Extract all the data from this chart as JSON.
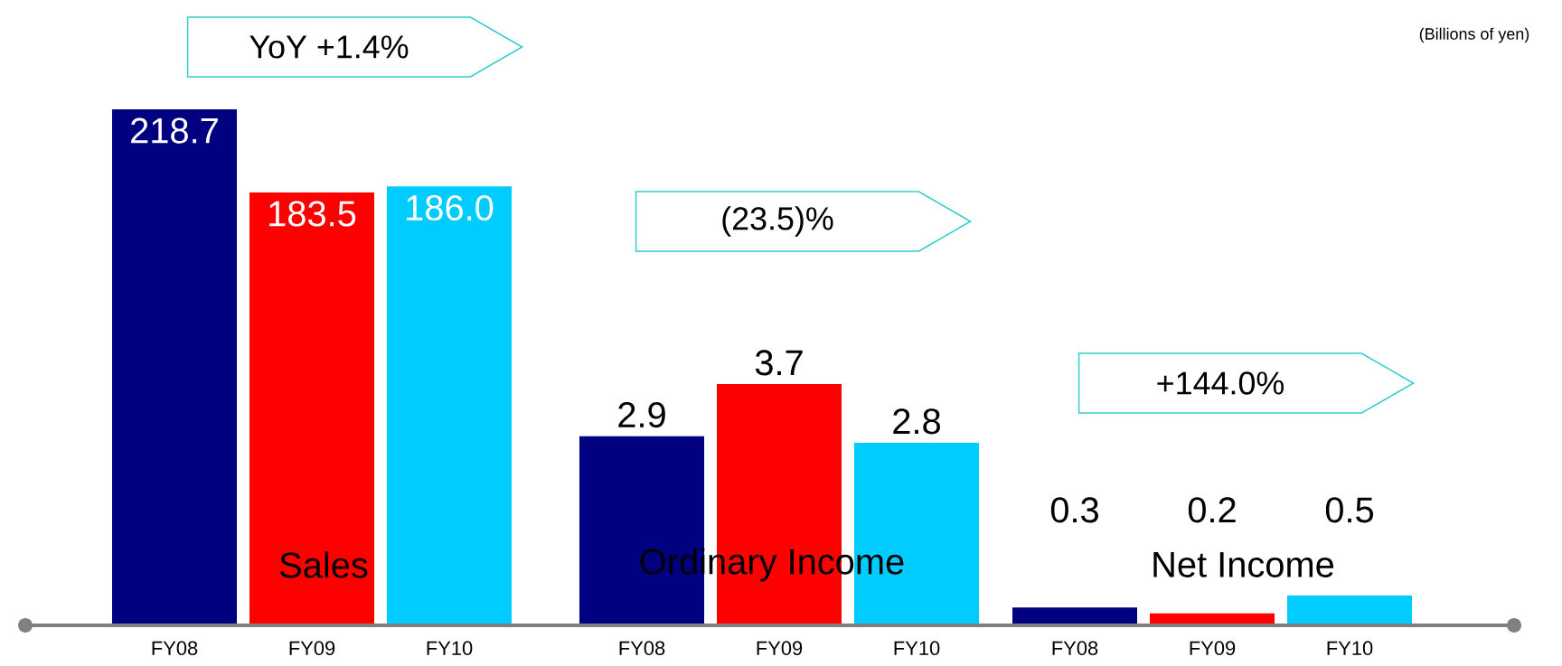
{
  "chart_data": [
    {
      "type": "bar",
      "title": "Sales",
      "categories": [
        "FY08",
        "FY09",
        "FY10"
      ],
      "values": [
        218.7,
        183.5,
        186.0
      ],
      "value_labels": [
        "218.7",
        "183.5",
        "186.0"
      ],
      "colors": [
        "#000080",
        "#ff0000",
        "#00ccff"
      ],
      "annotations": [
        "YoY +1.4%"
      ]
    },
    {
      "type": "bar",
      "title": "Ordinary Income",
      "categories": [
        "FY08",
        "FY09",
        "FY10"
      ],
      "values": [
        2.9,
        3.7,
        2.8
      ],
      "value_labels": [
        "2.9",
        "3.7",
        "2.8"
      ],
      "colors": [
        "#000080",
        "#ff0000",
        "#00ccff"
      ],
      "annotations": [
        "(23.5)%"
      ]
    },
    {
      "type": "bar",
      "title": "Net Income",
      "categories": [
        "FY08",
        "FY09",
        "FY10"
      ],
      "values": [
        0.3,
        0.2,
        0.5
      ],
      "value_labels": [
        "0.3",
        "0.2",
        "0.5"
      ],
      "colors": [
        "#000080",
        "#ff0000",
        "#00ccff"
      ],
      "annotations": [
        "+144.0%",
        "(Billions of yen)"
      ]
    }
  ]
}
